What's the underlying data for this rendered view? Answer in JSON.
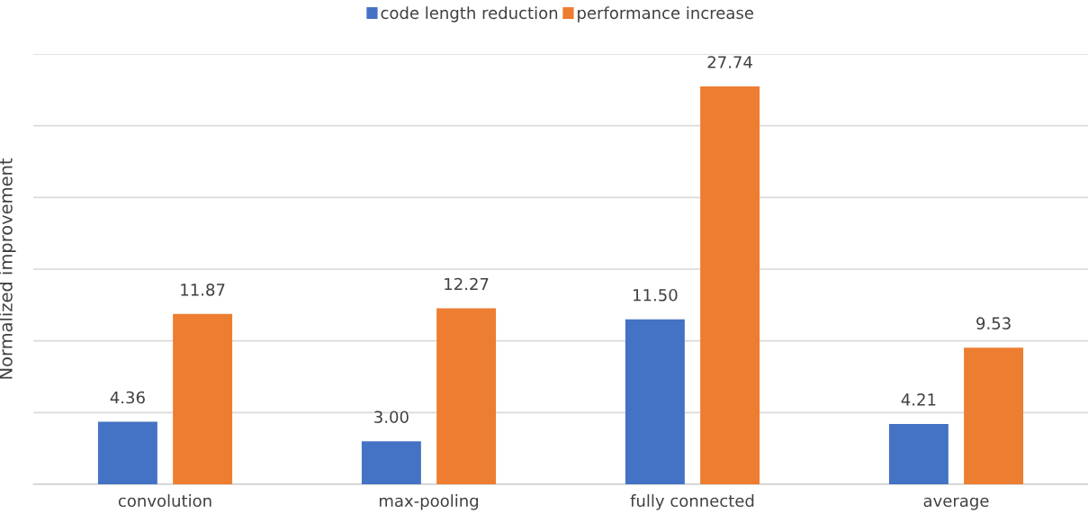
{
  "chart_data": {
    "type": "bar",
    "ylabel": "Normalized improvement",
    "categories": [
      "convolution",
      "max-pooling",
      "fully connected",
      "average"
    ],
    "series": [
      {
        "name": "code length reduction",
        "color": "#4472c4",
        "values": [
          4.36,
          3.0,
          11.5,
          4.21
        ],
        "value_labels": [
          "4.36",
          "3.00",
          "11.50",
          "4.21"
        ]
      },
      {
        "name": "performance increase",
        "color": "#ed7d31",
        "values": [
          11.87,
          12.27,
          27.74,
          9.53
        ],
        "value_labels": [
          "11.87",
          "12.27",
          "27.74",
          "9.53"
        ]
      }
    ],
    "ylim": [
      0,
      30
    ],
    "yticks": [
      {
        "value": 0,
        "label": null
      },
      {
        "value": 5,
        "label": null
      },
      {
        "value": 10,
        "label": null
      },
      {
        "value": 15,
        "label": null
      },
      {
        "value": 20,
        "label": null
      },
      {
        "value": 25,
        "label": null
      },
      {
        "value": 30,
        "label": null
      }
    ],
    "tick_labels": "x",
    "grid": "y",
    "legend": "top"
  }
}
